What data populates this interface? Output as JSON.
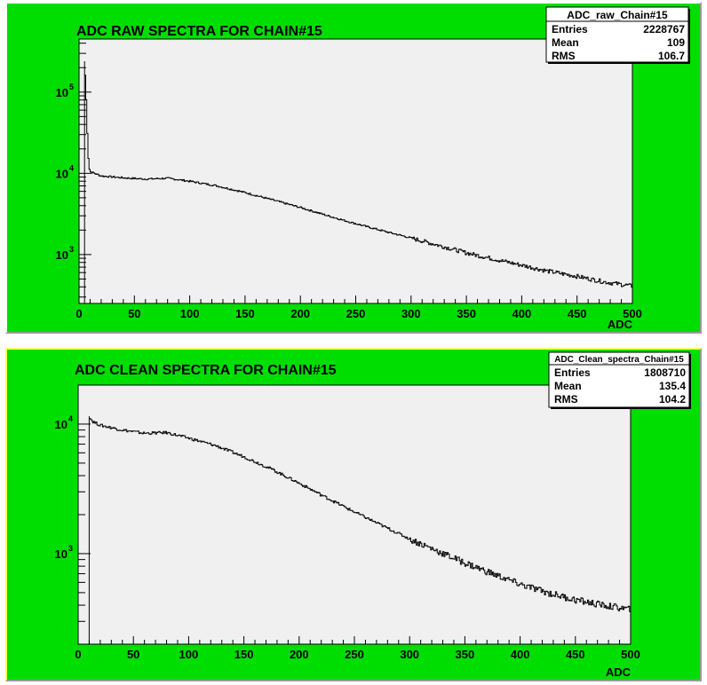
{
  "colors": {
    "pad_fill": "#00dd00",
    "frame_fill": "#f0f0f0",
    "line": "#000000"
  },
  "chart_data": [
    {
      "type": "histogram",
      "title": "ADC RAW SPECTRA FOR CHAIN#15",
      "xlabel": "ADC",
      "ylabel": "",
      "xlim": [
        0,
        500
      ],
      "ylim": [
        250,
        450000
      ],
      "y_scale": "log",
      "x_ticks": [
        0,
        50,
        100,
        150,
        200,
        250,
        300,
        350,
        400,
        450,
        500
      ],
      "y_ticks": [
        {
          "value": 1000,
          "label": "10",
          "exp": "3"
        },
        {
          "value": 10000,
          "label": "10",
          "exp": "4"
        },
        {
          "value": 100000,
          "label": "10",
          "exp": "5"
        }
      ],
      "stats": {
        "name": "ADC_raw_Chain#15",
        "rows": [
          {
            "label": "Entries",
            "value": "2228767"
          },
          {
            "label": "Mean",
            "value": "109"
          },
          {
            "label": "RMS",
            "value": "106.7"
          }
        ]
      },
      "curve": [
        [
          5,
          200000
        ],
        [
          6,
          130000
        ],
        [
          7,
          50000
        ],
        [
          8,
          20000
        ],
        [
          9,
          12000
        ],
        [
          10,
          10500
        ],
        [
          20,
          9300
        ],
        [
          40,
          8800
        ],
        [
          60,
          8500
        ],
        [
          80,
          8700
        ],
        [
          100,
          8000
        ],
        [
          125,
          7000
        ],
        [
          150,
          5800
        ],
        [
          175,
          4700
        ],
        [
          200,
          3800
        ],
        [
          225,
          3000
        ],
        [
          250,
          2400
        ],
        [
          275,
          1950
        ],
        [
          300,
          1600
        ],
        [
          325,
          1300
        ],
        [
          350,
          1050
        ],
        [
          375,
          880
        ],
        [
          400,
          740
        ],
        [
          425,
          620
        ],
        [
          450,
          540
        ],
        [
          475,
          460
        ],
        [
          500,
          410
        ]
      ],
      "spike_x": 5,
      "spike_y": 240000
    },
    {
      "type": "histogram",
      "title": "ADC CLEAN SPECTRA FOR CHAIN#15",
      "xlabel": "ADC",
      "ylabel": "",
      "xlim": [
        0,
        500
      ],
      "ylim": [
        200,
        20000
      ],
      "y_scale": "log",
      "x_ticks": [
        0,
        50,
        100,
        150,
        200,
        250,
        300,
        350,
        400,
        450,
        500
      ],
      "y_ticks": [
        {
          "value": 1000,
          "label": "10",
          "exp": "3"
        },
        {
          "value": 10000,
          "label": "10",
          "exp": "4"
        }
      ],
      "stats": {
        "name": "ADC_Clean_spectra_Chain#15",
        "rows": [
          {
            "label": "Entries",
            "value": "1808710"
          },
          {
            "label": "Mean",
            "value": "135.4"
          },
          {
            "label": "RMS",
            "value": "104.2"
          }
        ]
      },
      "curve": [
        [
          10,
          11500
        ],
        [
          13,
          10500
        ],
        [
          20,
          9800
        ],
        [
          40,
          9000
        ],
        [
          60,
          8500
        ],
        [
          80,
          8600
        ],
        [
          100,
          7800
        ],
        [
          125,
          6800
        ],
        [
          150,
          5600
        ],
        [
          175,
          4500
        ],
        [
          200,
          3500
        ],
        [
          225,
          2700
        ],
        [
          250,
          2100
        ],
        [
          275,
          1650
        ],
        [
          300,
          1300
        ],
        [
          325,
          1050
        ],
        [
          350,
          850
        ],
        [
          375,
          700
        ],
        [
          400,
          580
        ],
        [
          425,
          500
        ],
        [
          450,
          440
        ],
        [
          475,
          400
        ],
        [
          500,
          370
        ]
      ],
      "spike_x": 10,
      "spike_y": 11500
    }
  ]
}
